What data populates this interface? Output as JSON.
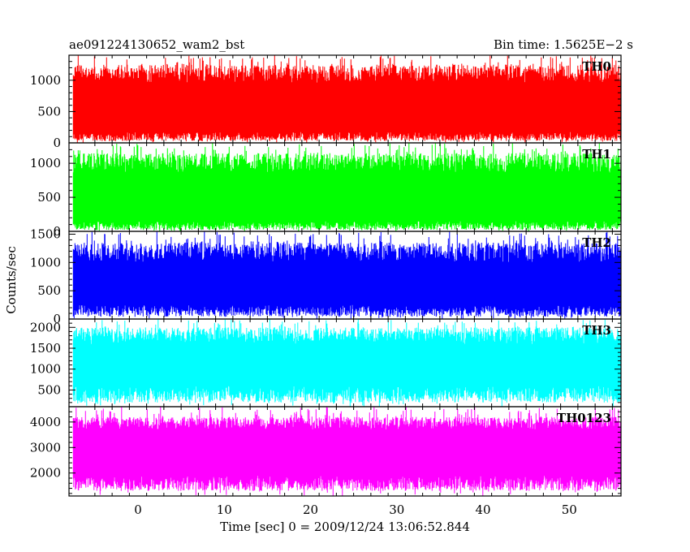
{
  "header": {
    "title": "ae091224130652_wam2_bst",
    "bin_time": "Bin time: 1.5625E−2 s"
  },
  "chart_data": [
    {
      "type": "area",
      "panel": "TH0",
      "label": "TH0",
      "color": "#ff0000",
      "x_range": [
        -8,
        56
      ],
      "ylim": [
        0,
        1400
      ],
      "yticks": [
        0,
        500,
        1000
      ],
      "ytick_labels": [
        "0",
        "500",
        "1000"
      ],
      "band": {
        "low": [
          30,
          180
        ],
        "high": [
          950,
          1250
        ]
      },
      "spike_max": 1400
    },
    {
      "type": "area",
      "panel": "TH1",
      "label": "TH1",
      "color": "#00ff00",
      "x_range": [
        -8,
        56
      ],
      "ylim": [
        0,
        1300
      ],
      "yticks": [
        0,
        500,
        1000
      ],
      "ytick_labels": [
        "0",
        "500",
        "1000"
      ],
      "band": {
        "low": [
          20,
          150
        ],
        "high": [
          850,
          1150
        ]
      },
      "spike_max": 1300
    },
    {
      "type": "area",
      "panel": "TH2",
      "label": "TH2",
      "color": "#0000ff",
      "x_range": [
        -8,
        56
      ],
      "ylim": [
        0,
        1550
      ],
      "yticks": [
        0,
        500,
        1000,
        1500
      ],
      "ytick_labels": [
        "0",
        "500",
        "1000",
        "1500"
      ],
      "band": {
        "low": [
          40,
          250
        ],
        "high": [
          1000,
          1350
        ]
      },
      "spike_max": 1550
    },
    {
      "type": "area",
      "panel": "TH3",
      "label": "TH3",
      "color": "#00ffff",
      "x_range": [
        -8,
        56
      ],
      "ylim": [
        100,
        2200
      ],
      "yticks": [
        500,
        1000,
        1500,
        2000
      ],
      "ytick_labels": [
        "500",
        "1000",
        "1500",
        "2000"
      ],
      "band": {
        "low": [
          200,
          600
        ],
        "high": [
          1600,
          2000
        ]
      },
      "spike_max": 2200
    },
    {
      "type": "area",
      "panel": "TH0123",
      "label": "TH0123",
      "color": "#ff00ff",
      "x_range": [
        -8,
        56
      ],
      "ylim": [
        1100,
        4600
      ],
      "yticks": [
        2000,
        3000,
        4000
      ],
      "ytick_labels": [
        "2000",
        "3000",
        "4000"
      ],
      "band": {
        "low": [
          1300,
          1900
        ],
        "high": [
          3700,
          4200
        ]
      },
      "spike_max": 4600
    }
  ],
  "axes": {
    "x_range": [
      -8,
      56
    ],
    "xticks": [
      0,
      10,
      20,
      30,
      40,
      50
    ],
    "xtick_labels": [
      "0",
      "10",
      "20",
      "30",
      "40",
      "50"
    ],
    "xlabel": "Time [sec] 0 = 2009/12/24 13:06:52.844",
    "ylabel": "Counts/sec",
    "data_start": -7.5,
    "data_end": 56
  }
}
